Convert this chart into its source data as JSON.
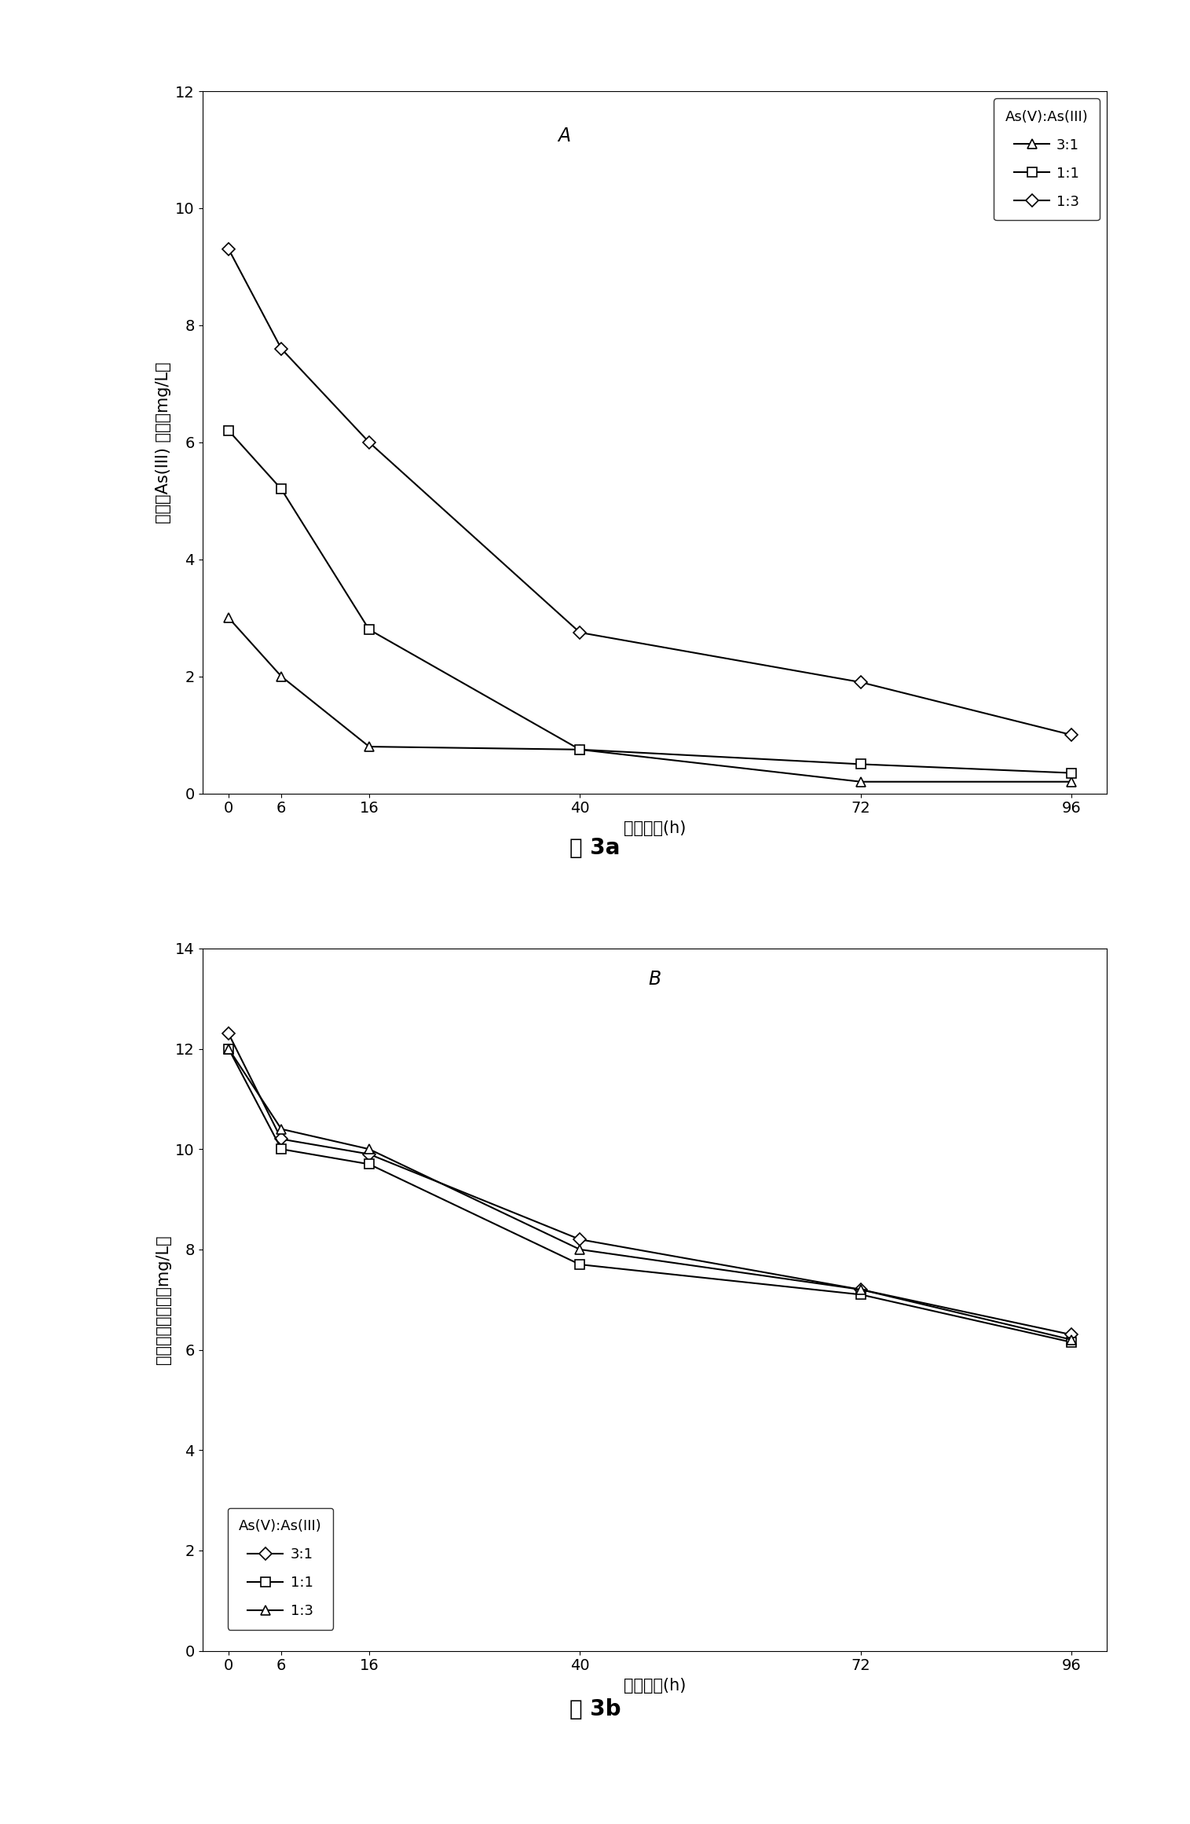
{
  "x_values": [
    0,
    6,
    16,
    40,
    72,
    96
  ],
  "chart_a": {
    "title": "A",
    "ylabel": "水体中As(III) 浓度（mg/L）",
    "xlabel": "处理时间(h)",
    "ylim": [
      0,
      12
    ],
    "yticks": [
      0,
      2,
      4,
      6,
      8,
      10,
      12
    ],
    "legend_title": "As(V):As(III)",
    "series": [
      {
        "label": "3:1",
        "marker": "^",
        "values": [
          3.0,
          2.0,
          0.8,
          0.75,
          0.2,
          0.2
        ]
      },
      {
        "label": "1:1",
        "marker": "s",
        "values": [
          6.2,
          5.2,
          2.8,
          0.75,
          0.5,
          0.35
        ]
      },
      {
        "label": "1:3",
        "marker": "D",
        "values": [
          9.3,
          7.6,
          6.0,
          2.75,
          1.9,
          1.0
        ]
      }
    ]
  },
  "chart_b": {
    "title": "B",
    "ylabel": "水体中总砰浓度（mg/L）",
    "xlabel": "处理时间(h)",
    "ylim": [
      0,
      14
    ],
    "yticks": [
      0,
      2,
      4,
      6,
      8,
      10,
      12,
      14
    ],
    "legend_title": "As(V):As(III)",
    "series": [
      {
        "label": "3:1",
        "marker": "D",
        "values": [
          12.3,
          10.2,
          9.9,
          8.2,
          7.2,
          6.3
        ]
      },
      {
        "label": "1:1",
        "marker": "s",
        "values": [
          12.0,
          10.0,
          9.7,
          7.7,
          7.1,
          6.15
        ]
      },
      {
        "label": "1:3",
        "marker": "^",
        "values": [
          12.0,
          10.4,
          10.0,
          8.0,
          7.2,
          6.2
        ]
      }
    ]
  },
  "caption_a": "图 3a",
  "caption_b": "图 3b",
  "line_color": "#000000",
  "background_color": "#ffffff",
  "font_size_axis_label": 15,
  "font_size_tick": 14,
  "font_size_legend": 13,
  "font_size_caption": 20,
  "font_size_panel_label": 17
}
